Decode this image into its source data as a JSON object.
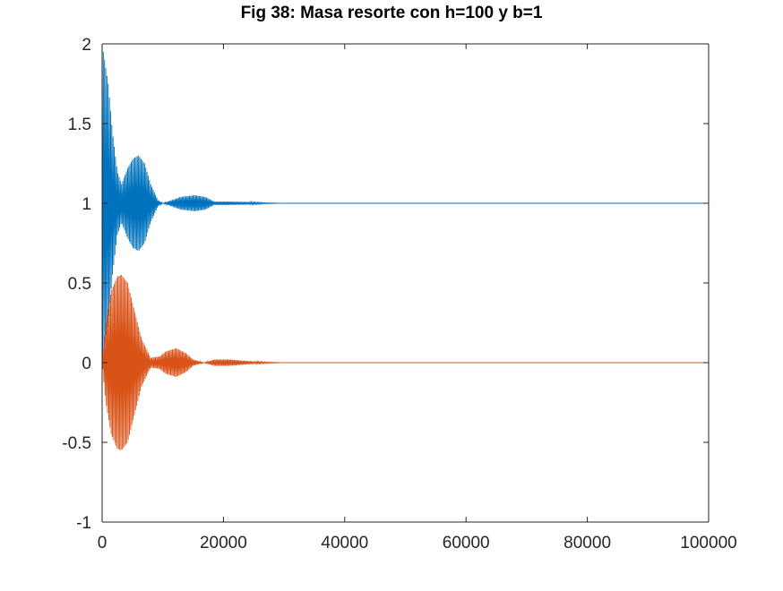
{
  "chart_data": {
    "type": "line",
    "title": "Fig 38: Masa resorte con h=100 y b=1",
    "xlabel": "",
    "ylabel": "",
    "xlim": [
      0,
      100000
    ],
    "ylim": [
      -1,
      2
    ],
    "x_ticks": [
      0,
      20000,
      40000,
      60000,
      80000,
      100000
    ],
    "x_tick_labels": [
      "0",
      "20000",
      "40000",
      "60000",
      "80000",
      "100000"
    ],
    "y_ticks": [
      -1,
      -0.5,
      0,
      0.5,
      1,
      1.5,
      2
    ],
    "y_tick_labels": [
      "-1",
      "-0.5",
      "0",
      "0.5",
      "1",
      "1.5",
      "2"
    ],
    "grid": false,
    "legend": "none",
    "series": [
      {
        "color": "#0072BD",
        "x": [
          0,
          1000,
          1700,
          2500,
          3200,
          4200,
          5100,
          6000,
          7000,
          8000,
          9200,
          10000,
          11500,
          13000,
          15300,
          17000,
          18500,
          21000,
          24000,
          27000,
          30000,
          100000
        ],
        "upper": [
          2.0,
          1.75,
          1.45,
          1.2,
          1.12,
          1.22,
          1.28,
          1.3,
          1.25,
          1.12,
          1.02,
          1.0,
          1.02,
          1.04,
          1.05,
          1.04,
          1.01,
          1.01,
          1.008,
          1.003,
          1.0,
          1.0
        ],
        "lower": [
          0.0,
          0.25,
          0.55,
          0.8,
          0.88,
          0.78,
          0.72,
          0.7,
          0.75,
          0.88,
          0.98,
          1.0,
          0.98,
          0.96,
          0.95,
          0.96,
          0.99,
          0.99,
          0.992,
          0.997,
          1.0,
          1.0
        ]
      },
      {
        "color": "#D95319",
        "x": [
          0,
          600,
          1500,
          2500,
          3200,
          4200,
          5500,
          6500,
          8000,
          9500,
          10500,
          12200,
          13800,
          15000,
          16800,
          18500,
          21000,
          24000,
          27000,
          30000,
          100000
        ],
        "upper": [
          0.0,
          0.25,
          0.45,
          0.54,
          0.55,
          0.5,
          0.3,
          0.15,
          0.03,
          0.04,
          0.07,
          0.09,
          0.06,
          0.02,
          0.0,
          0.02,
          0.02,
          0.01,
          0.004,
          0.0,
          0.0
        ],
        "lower": [
          0.0,
          -0.25,
          -0.45,
          -0.54,
          -0.55,
          -0.5,
          -0.3,
          -0.15,
          -0.03,
          -0.04,
          -0.07,
          -0.09,
          -0.06,
          -0.02,
          0.0,
          -0.02,
          -0.02,
          -0.01,
          -0.004,
          0.0,
          0.0
        ]
      }
    ]
  }
}
